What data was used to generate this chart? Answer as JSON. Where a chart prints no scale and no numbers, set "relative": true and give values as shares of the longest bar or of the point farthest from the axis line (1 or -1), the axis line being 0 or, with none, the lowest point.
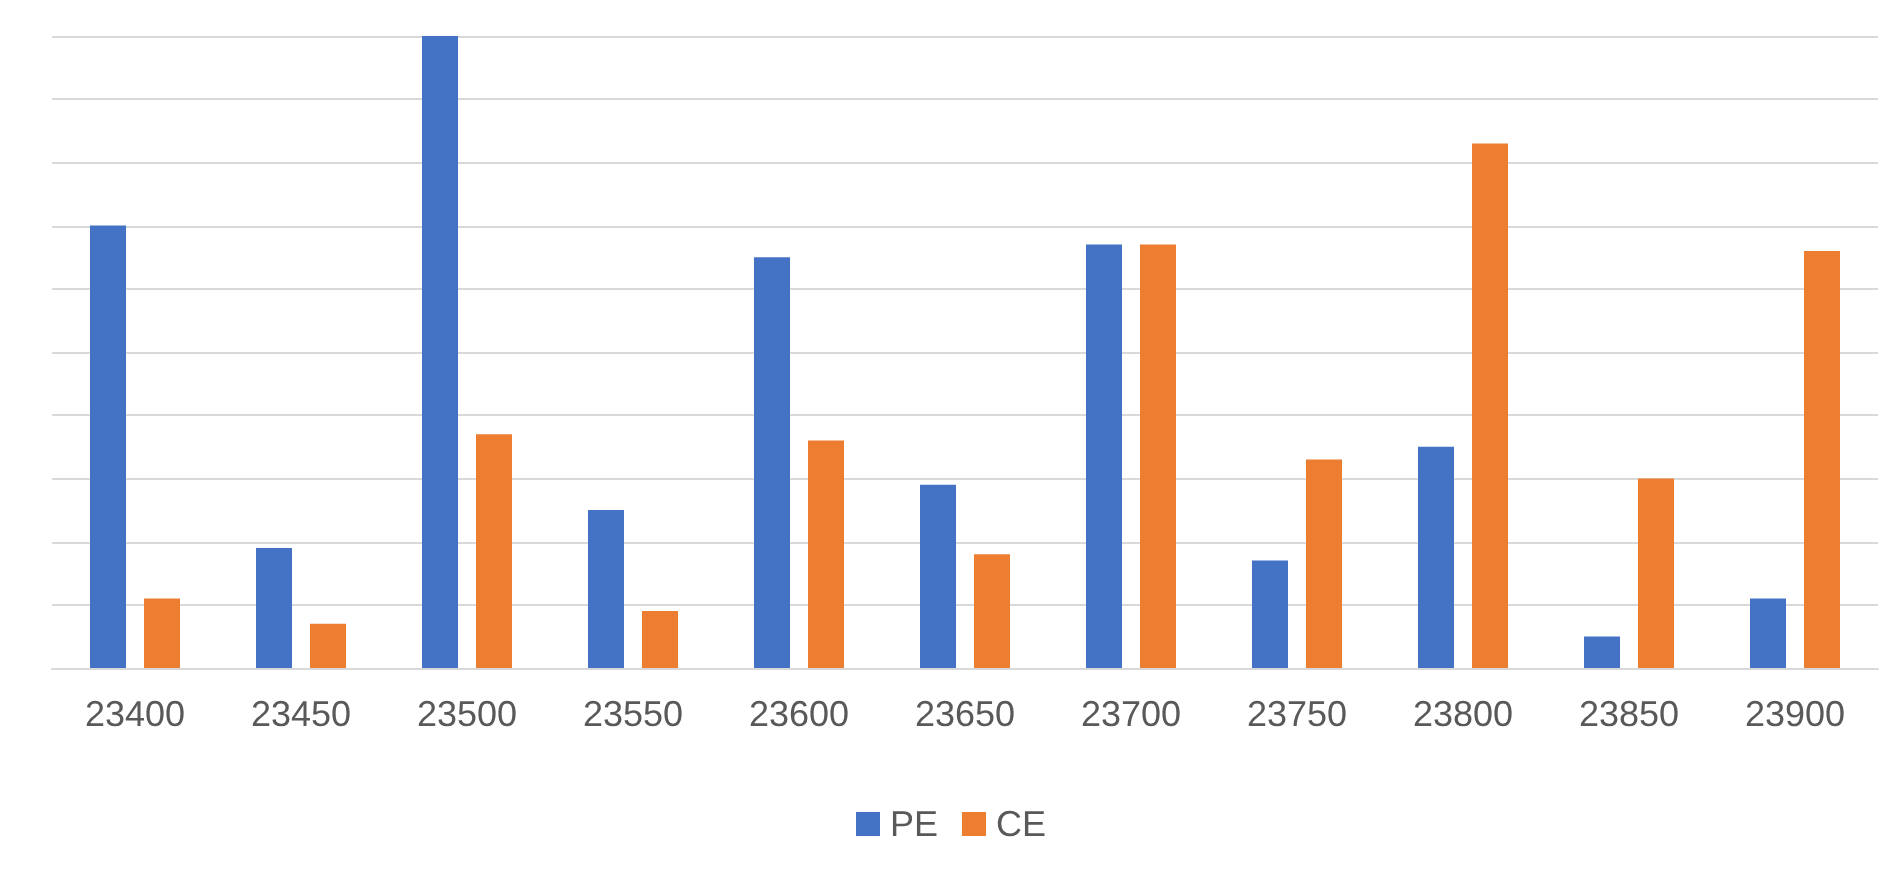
{
  "chart_data": {
    "type": "bar",
    "relative": true,
    "categories": [
      "23400",
      "23450",
      "23500",
      "23550",
      "23600",
      "23650",
      "23700",
      "23750",
      "23800",
      "23850",
      "23900"
    ],
    "series": [
      {
        "name": "PE",
        "color": "#4472c4",
        "values": [
          0.7,
          0.19,
          1,
          0.25,
          0.65,
          0.29,
          0.67,
          0.17,
          0.35,
          0.05,
          0.11
        ]
      },
      {
        "name": "CE",
        "color": "#ed7d31",
        "values": [
          0.11,
          0.07,
          0.37,
          0.09,
          0.36,
          0.18,
          0.67,
          0.33,
          0.83,
          0.3,
          0.66
        ]
      }
    ],
    "grid": "y",
    "legend": "bottom"
  }
}
